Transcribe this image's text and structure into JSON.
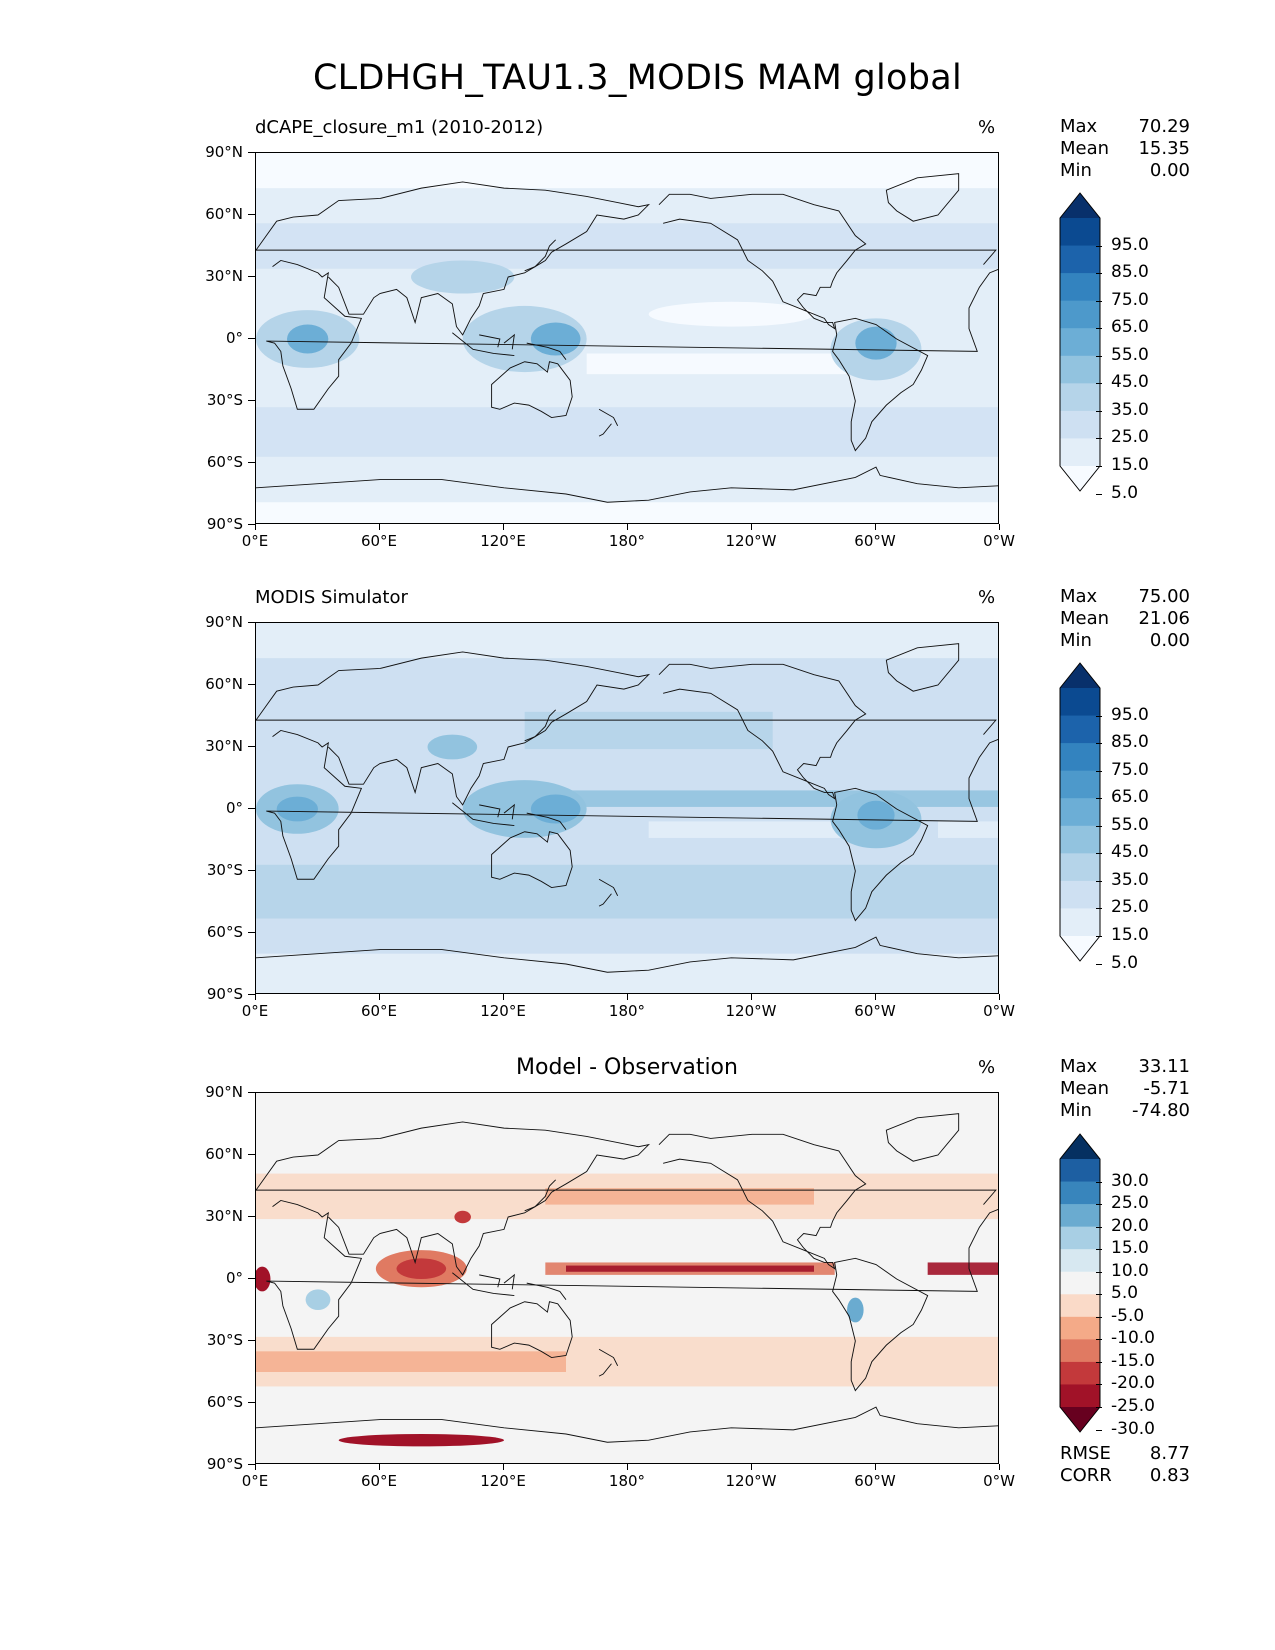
{
  "title": "CLDHGH_TAU1.3_MODIS MAM global",
  "lat_labels": [
    "90°N",
    "60°N",
    "30°N",
    "0°",
    "30°S",
    "60°S",
    "90°S"
  ],
  "lon_labels": [
    "0°E",
    "60°E",
    "120°E",
    "180°",
    "120°W",
    "60°W",
    "0°W"
  ],
  "panels": [
    {
      "name": "test",
      "title": "dCAPE_closure_m1 (2010-2012)",
      "units": "%",
      "stats": {
        "max_label": "Max",
        "max": "70.29",
        "mean_label": "Mean",
        "mean": "15.35",
        "min_label": "Min",
        "min": "0.00"
      },
      "colorbar": {
        "labels": [
          "95.0",
          "85.0",
          "75.0",
          "65.0",
          "55.0",
          "45.0",
          "35.0",
          "25.0",
          "15.0",
          "5.0"
        ],
        "colors": [
          "#08306b",
          "#0b4a91",
          "#1c63ab",
          "#3383bf",
          "#4d99cb",
          "#6caed6",
          "#92c3df",
          "#b5d4e9",
          "#cee0f2",
          "#e3eef8",
          "#f7fbff"
        ]
      }
    },
    {
      "name": "reference",
      "title": "MODIS Simulator",
      "units": "%",
      "stats": {
        "max_label": "Max",
        "max": "75.00",
        "mean_label": "Mean",
        "mean": "21.06",
        "min_label": "Min",
        "min": "0.00"
      },
      "colorbar": {
        "labels": [
          "95.0",
          "85.0",
          "75.0",
          "65.0",
          "55.0",
          "45.0",
          "35.0",
          "25.0",
          "15.0",
          "5.0"
        ],
        "colors": [
          "#08306b",
          "#0b4a91",
          "#1c63ab",
          "#3383bf",
          "#4d99cb",
          "#6caed6",
          "#92c3df",
          "#b5d4e9",
          "#cee0f2",
          "#e3eef8",
          "#f7fbff"
        ]
      }
    },
    {
      "name": "difference",
      "title": "Model - Observation",
      "units": "%",
      "stats": {
        "max_label": "Max",
        "max": "33.11",
        "mean_label": "Mean",
        "mean": "-5.71",
        "min_label": "Min",
        "min": "-74.80"
      },
      "metrics": {
        "rmse_label": "RMSE",
        "rmse": "8.77",
        "corr_label": "CORR",
        "corr": "0.83"
      },
      "colorbar": {
        "labels": [
          "30.0",
          "25.0",
          "20.0",
          "15.0",
          "10.0",
          "5.0",
          "-5.0",
          "-10.0",
          "-15.0",
          "-20.0",
          "-25.0",
          "-30.0"
        ],
        "colors": [
          "#053061",
          "#1d5fa2",
          "#3885bc",
          "#6aabd0",
          "#a8cfe4",
          "#d7e8f1",
          "#f4f4f4",
          "#fadac8",
          "#f4aa88",
          "#e07a62",
          "#c3393b",
          "#a11228",
          "#67001f"
        ]
      }
    }
  ]
}
